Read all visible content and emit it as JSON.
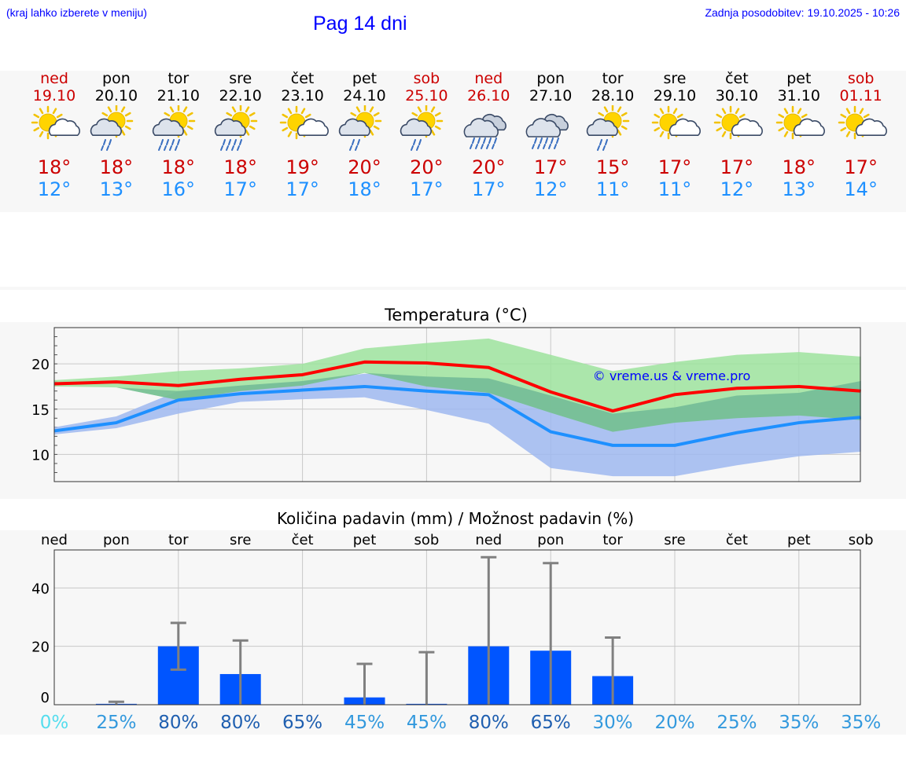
{
  "header": {
    "note": "(kraj lahko izberete v meniju)",
    "title": "Pag 14 dni",
    "updated": "Zadnja posodobitev: 19.10.2025 - 10:26"
  },
  "colors": {
    "weekday": "#000000",
    "weekend": "#cc0000",
    "tmax": "#cc0000",
    "tmin": "#1e90ff",
    "red_line": "#ff0000",
    "blue_line": "#1e90ff",
    "green_band": "#9ee39e",
    "blue_band": "#9fb8f0",
    "bar": "#0055ff",
    "whisker": "#808080",
    "watermark": "#0000ff"
  },
  "days": [
    {
      "name": "ned",
      "date": "19.10",
      "weekend": true,
      "icon": "sun-cloud-icon",
      "tmax": "18°",
      "tmin": "12°"
    },
    {
      "name": "pon",
      "date": "20.10",
      "weekend": false,
      "icon": "sun-cloud-rain-icon",
      "tmax": "18°",
      "tmin": "13°"
    },
    {
      "name": "tor",
      "date": "21.10",
      "weekend": false,
      "icon": "sun-cloud-heavy-rain-icon",
      "tmax": "18°",
      "tmin": "16°"
    },
    {
      "name": "sre",
      "date": "22.10",
      "weekend": false,
      "icon": "sun-cloud-heavy-rain-icon",
      "tmax": "18°",
      "tmin": "17°"
    },
    {
      "name": "čet",
      "date": "23.10",
      "weekend": false,
      "icon": "sun-cloud-icon",
      "tmax": "19°",
      "tmin": "17°"
    },
    {
      "name": "pet",
      "date": "24.10",
      "weekend": false,
      "icon": "sun-cloud-rain-icon",
      "tmax": "20°",
      "tmin": "18°"
    },
    {
      "name": "sob",
      "date": "25.10",
      "weekend": true,
      "icon": "sun-cloud-rain-icon",
      "tmax": "20°",
      "tmin": "17°"
    },
    {
      "name": "ned",
      "date": "26.10",
      "weekend": true,
      "icon": "cloud-heavy-rain-icon",
      "tmax": "20°",
      "tmin": "17°"
    },
    {
      "name": "pon",
      "date": "27.10",
      "weekend": false,
      "icon": "cloud-heavy-rain-icon",
      "tmax": "17°",
      "tmin": "12°"
    },
    {
      "name": "tor",
      "date": "28.10",
      "weekend": false,
      "icon": "sun-cloud-rain-icon",
      "tmax": "15°",
      "tmin": "11°"
    },
    {
      "name": "sre",
      "date": "29.10",
      "weekend": false,
      "icon": "sun-cloud-icon",
      "tmax": "17°",
      "tmin": "11°"
    },
    {
      "name": "čet",
      "date": "30.10",
      "weekend": false,
      "icon": "sun-cloud-icon",
      "tmax": "17°",
      "tmin": "12°"
    },
    {
      "name": "pet",
      "date": "31.10",
      "weekend": false,
      "icon": "sun-cloud-icon",
      "tmax": "18°",
      "tmin": "13°"
    },
    {
      "name": "sob",
      "date": "01.11",
      "weekend": true,
      "icon": "sun-cloud-icon",
      "tmax": "17°",
      "tmin": "14°"
    }
  ],
  "chart_data": [
    {
      "type": "line",
      "title": "Temperatura (°C)",
      "watermark": "© vreme.us & vreme.pro",
      "ylim": [
        7,
        24
      ],
      "yticks": [
        10,
        15,
        20
      ],
      "series": [
        {
          "name": "max",
          "values": [
            17.8,
            18.0,
            17.6,
            18.3,
            18.8,
            20.2,
            20.1,
            19.6,
            16.9,
            14.8,
            16.6,
            17.3,
            17.5,
            17.0
          ]
        },
        {
          "name": "min",
          "values": [
            12.6,
            13.5,
            16.0,
            16.7,
            17.1,
            17.5,
            17.0,
            16.6,
            12.5,
            11.0,
            11.0,
            12.4,
            13.5,
            14.1
          ]
        },
        {
          "name": "max_range_low",
          "values": [
            17.5,
            17.4,
            16.0,
            17.0,
            17.6,
            19.0,
            17.5,
            16.8,
            14.6,
            12.5,
            13.5,
            14.0,
            14.3,
            13.8
          ]
        },
        {
          "name": "max_range_high",
          "values": [
            18.2,
            18.6,
            19.2,
            19.5,
            20.0,
            21.7,
            22.3,
            22.8,
            21.0,
            19.2,
            20.2,
            21.0,
            21.3,
            20.8
          ]
        },
        {
          "name": "min_range_low",
          "values": [
            12.2,
            12.9,
            14.5,
            15.8,
            16.1,
            16.3,
            14.9,
            13.4,
            8.5,
            7.6,
            7.6,
            8.8,
            9.8,
            10.3
          ]
        },
        {
          "name": "min_range_high",
          "values": [
            13.0,
            14.2,
            17.0,
            17.6,
            18.1,
            18.9,
            18.6,
            18.4,
            16.5,
            14.5,
            15.2,
            16.5,
            16.8,
            18.1
          ]
        }
      ]
    },
    {
      "type": "bar",
      "title": "Količina padavin (mm) / Možnost padavin (%)",
      "ylim": [
        0,
        53
      ],
      "yticks": [
        0,
        20,
        40
      ],
      "categories": [
        "ned",
        "pon",
        "tor",
        "sre",
        "čet",
        "pet",
        "sob",
        "ned",
        "pon",
        "tor",
        "sre",
        "čet",
        "pet",
        "sob"
      ],
      "values": [
        0,
        0.3,
        20,
        10.5,
        0,
        2.5,
        0.3,
        20,
        18.5,
        9.8,
        0,
        0,
        0,
        0
      ],
      "error_low": [
        0,
        0,
        12,
        0,
        0,
        0,
        0,
        0,
        0,
        0,
        0,
        0,
        0,
        0
      ],
      "error_high": [
        0,
        1.0,
        28,
        22,
        0,
        14,
        18,
        50.5,
        48.5,
        23,
        0,
        0,
        0,
        0
      ],
      "probabilities": [
        "0%",
        "25%",
        "80%",
        "80%",
        "65%",
        "45%",
        "45%",
        "80%",
        "65%",
        "30%",
        "20%",
        "25%",
        "35%",
        "35%"
      ],
      "probability_colors": [
        "#55ddee",
        "#3399dd",
        "#1f5fb0",
        "#1f5fb0",
        "#1f5fb0",
        "#3399dd",
        "#3399dd",
        "#1f5fb0",
        "#1f5fb0",
        "#3399dd",
        "#3399dd",
        "#3399dd",
        "#3399dd",
        "#3399dd"
      ]
    }
  ]
}
